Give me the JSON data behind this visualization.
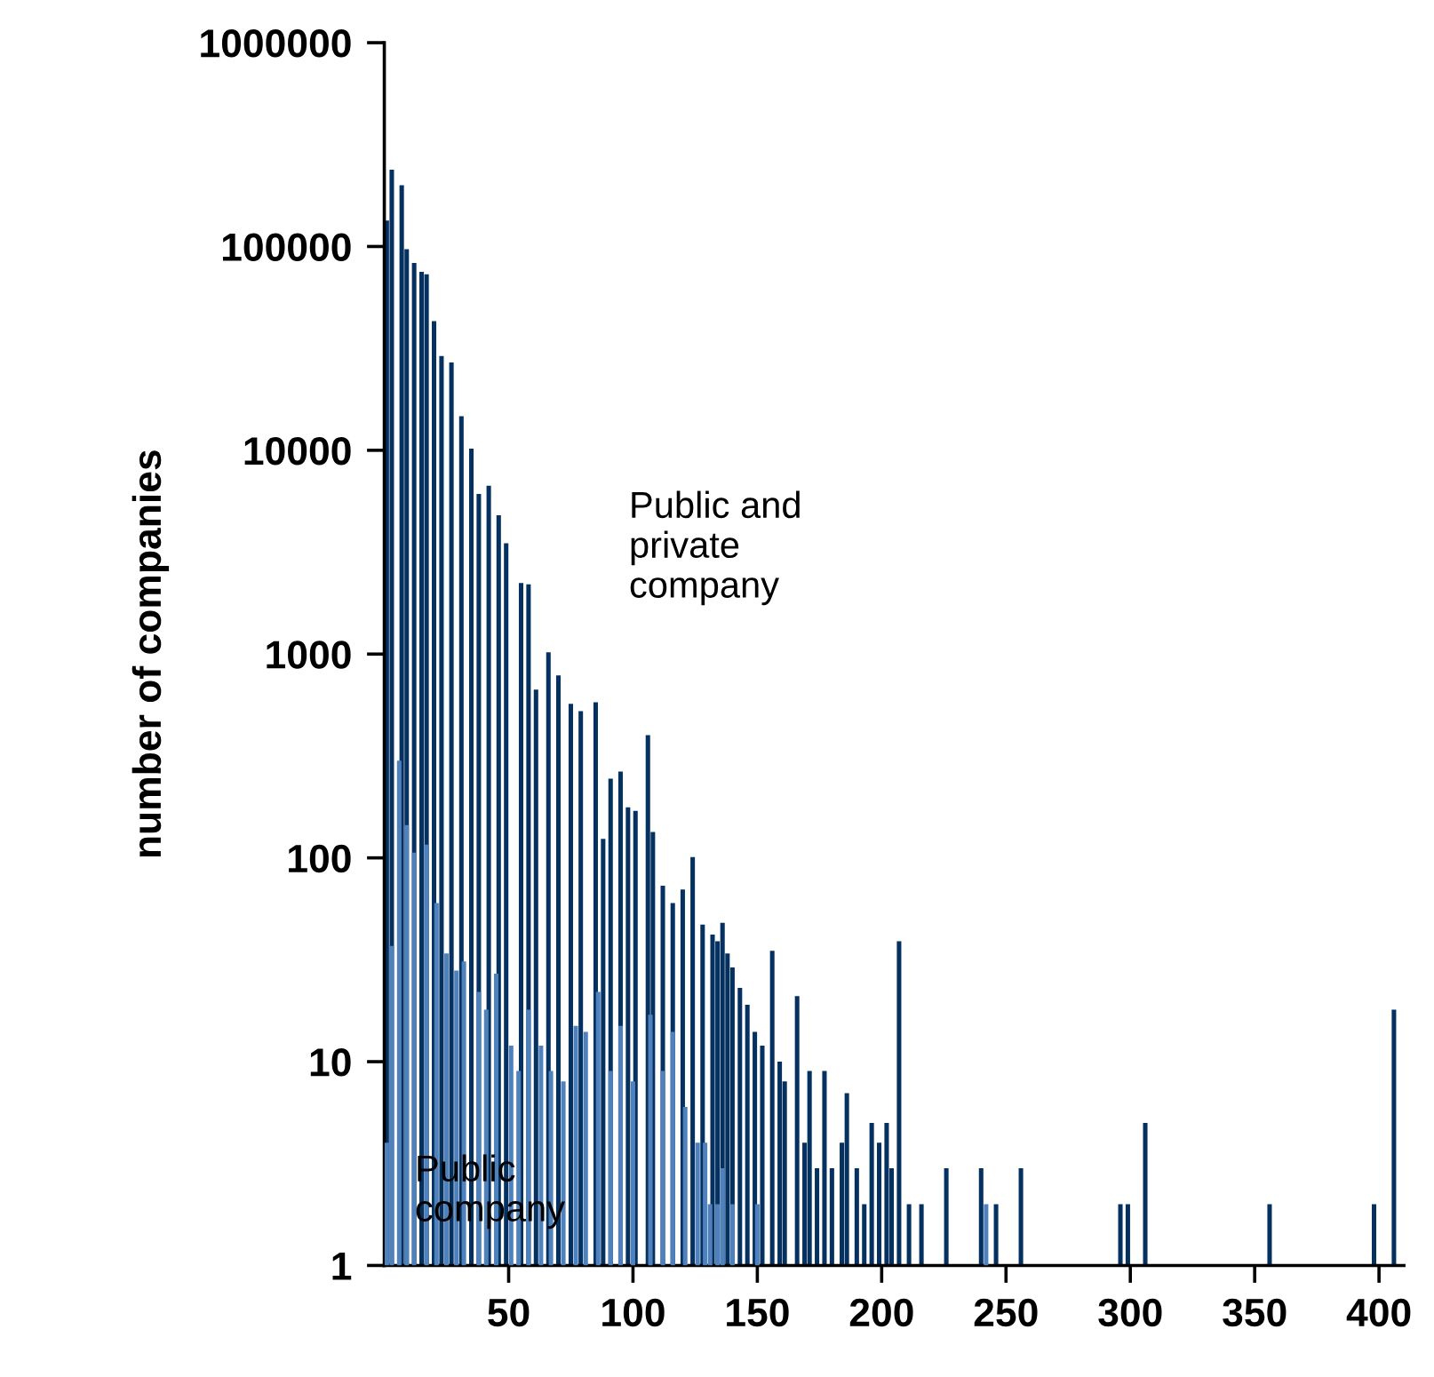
{
  "chart_data": {
    "type": "bar",
    "ylabel": "number of companies",
    "log": "y",
    "grid": false,
    "legend": false,
    "xlim": [
      0,
      410
    ],
    "xticks": [
      50,
      100,
      150,
      200,
      250,
      300,
      350,
      400
    ],
    "ylim": [
      1,
      1000000
    ],
    "yticks": [
      1,
      10,
      100,
      1000,
      10000,
      100000,
      1000000
    ],
    "series": [
      {
        "name": "Public and private company",
        "color": "#04315f",
        "x": [
          1,
          3,
          7,
          9,
          12,
          15,
          17,
          20,
          23,
          27,
          31,
          35,
          38,
          42,
          46,
          49,
          55,
          58,
          61,
          66,
          70,
          75,
          79,
          85,
          88,
          91,
          95,
          98,
          101,
          106,
          108,
          112,
          116,
          120,
          124,
          128,
          132,
          134,
          136,
          138,
          140,
          143,
          146,
          149,
          152,
          156,
          159,
          161,
          166,
          169,
          171,
          174,
          177,
          180,
          184,
          186,
          190,
          193,
          196,
          199,
          202,
          204,
          207,
          211,
          216,
          226,
          240,
          246,
          256,
          296,
          299,
          306,
          356,
          398,
          406
        ],
        "values": [
          134000,
          238000,
          200000,
          97000,
          83000,
          75000,
          73000,
          43000,
          29000,
          27000,
          14700,
          10200,
          6100,
          6700,
          4800,
          3500,
          2230,
          2200,
          670,
          1020,
          785,
          570,
          525,
          580,
          124,
          245,
          265,
          177,
          170,
          400,
          134,
          73,
          60,
          70,
          101,
          47,
          42,
          39,
          48,
          34,
          29,
          23,
          19,
          14,
          12,
          35,
          10,
          8,
          21,
          4,
          9,
          3,
          9,
          3,
          4,
          7,
          3,
          2,
          5,
          4,
          5,
          3,
          39,
          2,
          2,
          3,
          3,
          2,
          3,
          2,
          2,
          5,
          2,
          2,
          18
        ]
      },
      {
        "name": "Public company",
        "color": "#4f81bd",
        "x": [
          1,
          3,
          6,
          9,
          12,
          17,
          21,
          25,
          29,
          32,
          38,
          41,
          45,
          51,
          54,
          58,
          63,
          67,
          72,
          77,
          81,
          86,
          91,
          95,
          100,
          107,
          112,
          116,
          121,
          126,
          129,
          131,
          134,
          136,
          140,
          150,
          242
        ],
        "values": [
          4,
          37,
          300,
          145,
          106,
          116,
          60,
          34,
          28,
          31,
          22,
          18,
          27,
          12,
          9,
          18,
          12,
          9,
          8,
          15,
          14,
          22,
          9,
          15,
          8,
          17,
          9,
          14,
          6,
          4,
          4,
          2,
          2,
          3,
          2,
          2,
          2
        ]
      }
    ]
  }
}
